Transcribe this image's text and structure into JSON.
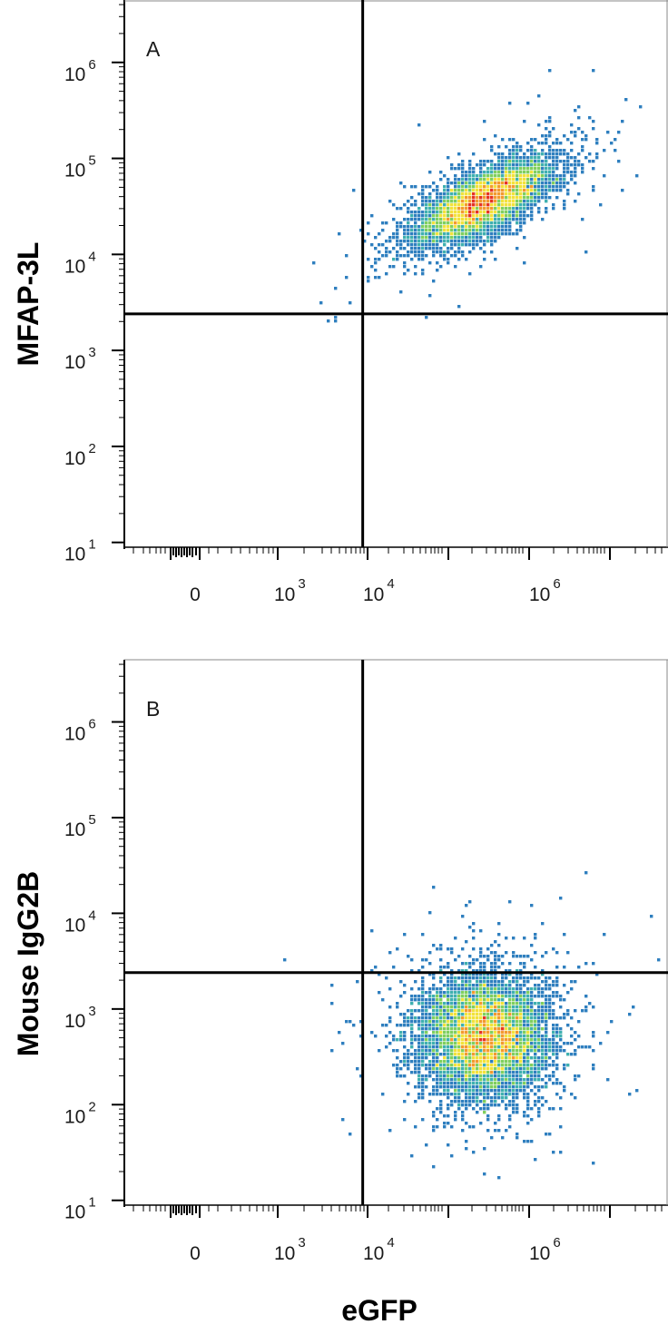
{
  "figure": {
    "xlabel": "eGFP",
    "colors": {
      "axis": "#000000",
      "density_scale": [
        "#2d4fa3",
        "#2f7fbf",
        "#3fb0b0",
        "#7fcf5f",
        "#f2e23a",
        "#f29a2e",
        "#e63323"
      ]
    }
  },
  "chart_data": [
    {
      "type": "scatter",
      "subtype": "flow-cytometry-density",
      "panel_label": "A",
      "xlabel": "eGFP",
      "ylabel": "MFAP-3L",
      "xscale": "log",
      "yscale": "log",
      "x_tick_labels": [
        {
          "base": "0",
          "exp": ""
        },
        {
          "base": "10",
          "exp": "3"
        },
        {
          "base": "10",
          "exp": "4"
        },
        {
          "base": "10",
          "exp": "6"
        }
      ],
      "y_tick_labels": [
        {
          "base": "10",
          "exp": "1"
        },
        {
          "base": "10",
          "exp": "2"
        },
        {
          "base": "10",
          "exp": "3"
        },
        {
          "base": "10",
          "exp": "4"
        },
        {
          "base": "10",
          "exp": "5"
        },
        {
          "base": "10",
          "exp": "6"
        }
      ],
      "xlim_log10": [
        1.3,
        7.8
      ],
      "ylim_log10": [
        0.95,
        6.65
      ],
      "quadrant_gate": {
        "x_log10": 4.15,
        "y_log10": 3.38
      },
      "population": {
        "center_log10": [
          5.6,
          4.55
        ],
        "spread_log10": [
          0.42,
          0.23
        ],
        "correlation": 0.7
      },
      "grid": false
    },
    {
      "type": "scatter",
      "subtype": "flow-cytometry-density",
      "panel_label": "B",
      "xlabel": "eGFP",
      "ylabel": "Mouse IgG2B",
      "xscale": "log",
      "yscale": "log",
      "x_tick_labels": [
        {
          "base": "0",
          "exp": ""
        },
        {
          "base": "10",
          "exp": "3"
        },
        {
          "base": "10",
          "exp": "4"
        },
        {
          "base": "10",
          "exp": "6"
        }
      ],
      "y_tick_labels": [
        {
          "base": "10",
          "exp": "1"
        },
        {
          "base": "10",
          "exp": "2"
        },
        {
          "base": "10",
          "exp": "3"
        },
        {
          "base": "10",
          "exp": "4"
        },
        {
          "base": "10",
          "exp": "5"
        },
        {
          "base": "10",
          "exp": "6"
        }
      ],
      "xlim_log10": [
        1.3,
        7.8
      ],
      "ylim_log10": [
        0.95,
        6.65
      ],
      "quadrant_gate": {
        "x_log10": 4.15,
        "y_log10": 3.38
      },
      "population": {
        "center_log10": [
          5.6,
          2.72
        ],
        "spread_log10": [
          0.4,
          0.33
        ],
        "correlation": 0.0
      },
      "grid": false
    }
  ]
}
